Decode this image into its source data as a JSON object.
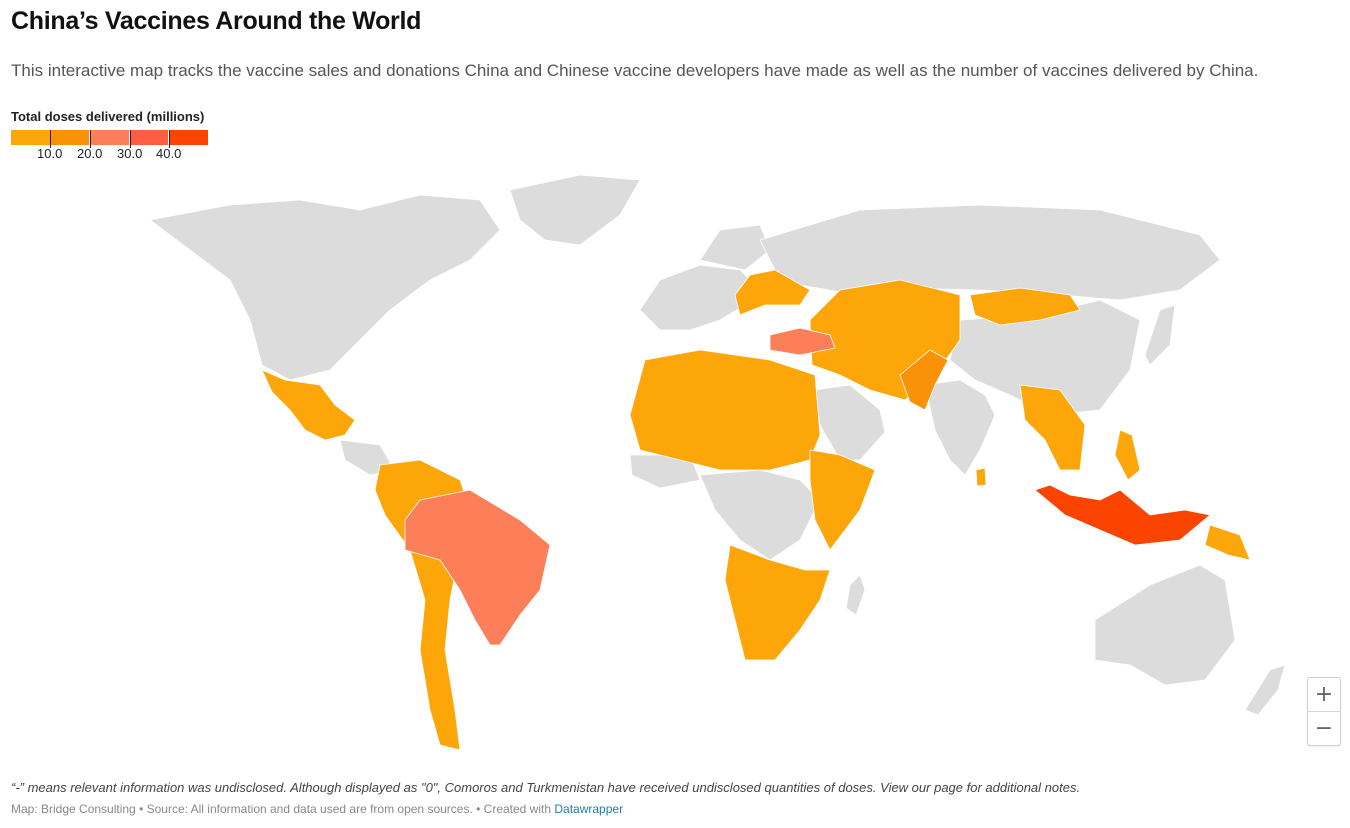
{
  "header": {
    "title": "China’s Vaccines Around the World",
    "subtitle": "This interactive map tracks the vaccine sales and donations China and Chinese vaccine developers have made as well as the number of vaccines delivered by China."
  },
  "legend": {
    "title": "Total doses delivered (millions)",
    "ticks": [
      "10.0",
      "20.0",
      "30.0",
      "40.0"
    ],
    "colors": [
      "#fca60a",
      "#f99109",
      "#fd7f5a",
      "#fb5f40",
      "#fb4400"
    ]
  },
  "map": {
    "no_data_color": "#dcdcdc",
    "zoom_in_label": "+",
    "zoom_out_label": "−"
  },
  "footer": {
    "note": "“-” means relevant information was undisclosed. Although displayed as \"0\", Comoros and Turkmenistan have received undisclosed quantities of doses. View our page for additional notes.",
    "byline_prefix": "Map: Bridge Consulting • Source: All information and data used are from open sources. • Created with ",
    "byline_link": "Datawrapper"
  }
}
